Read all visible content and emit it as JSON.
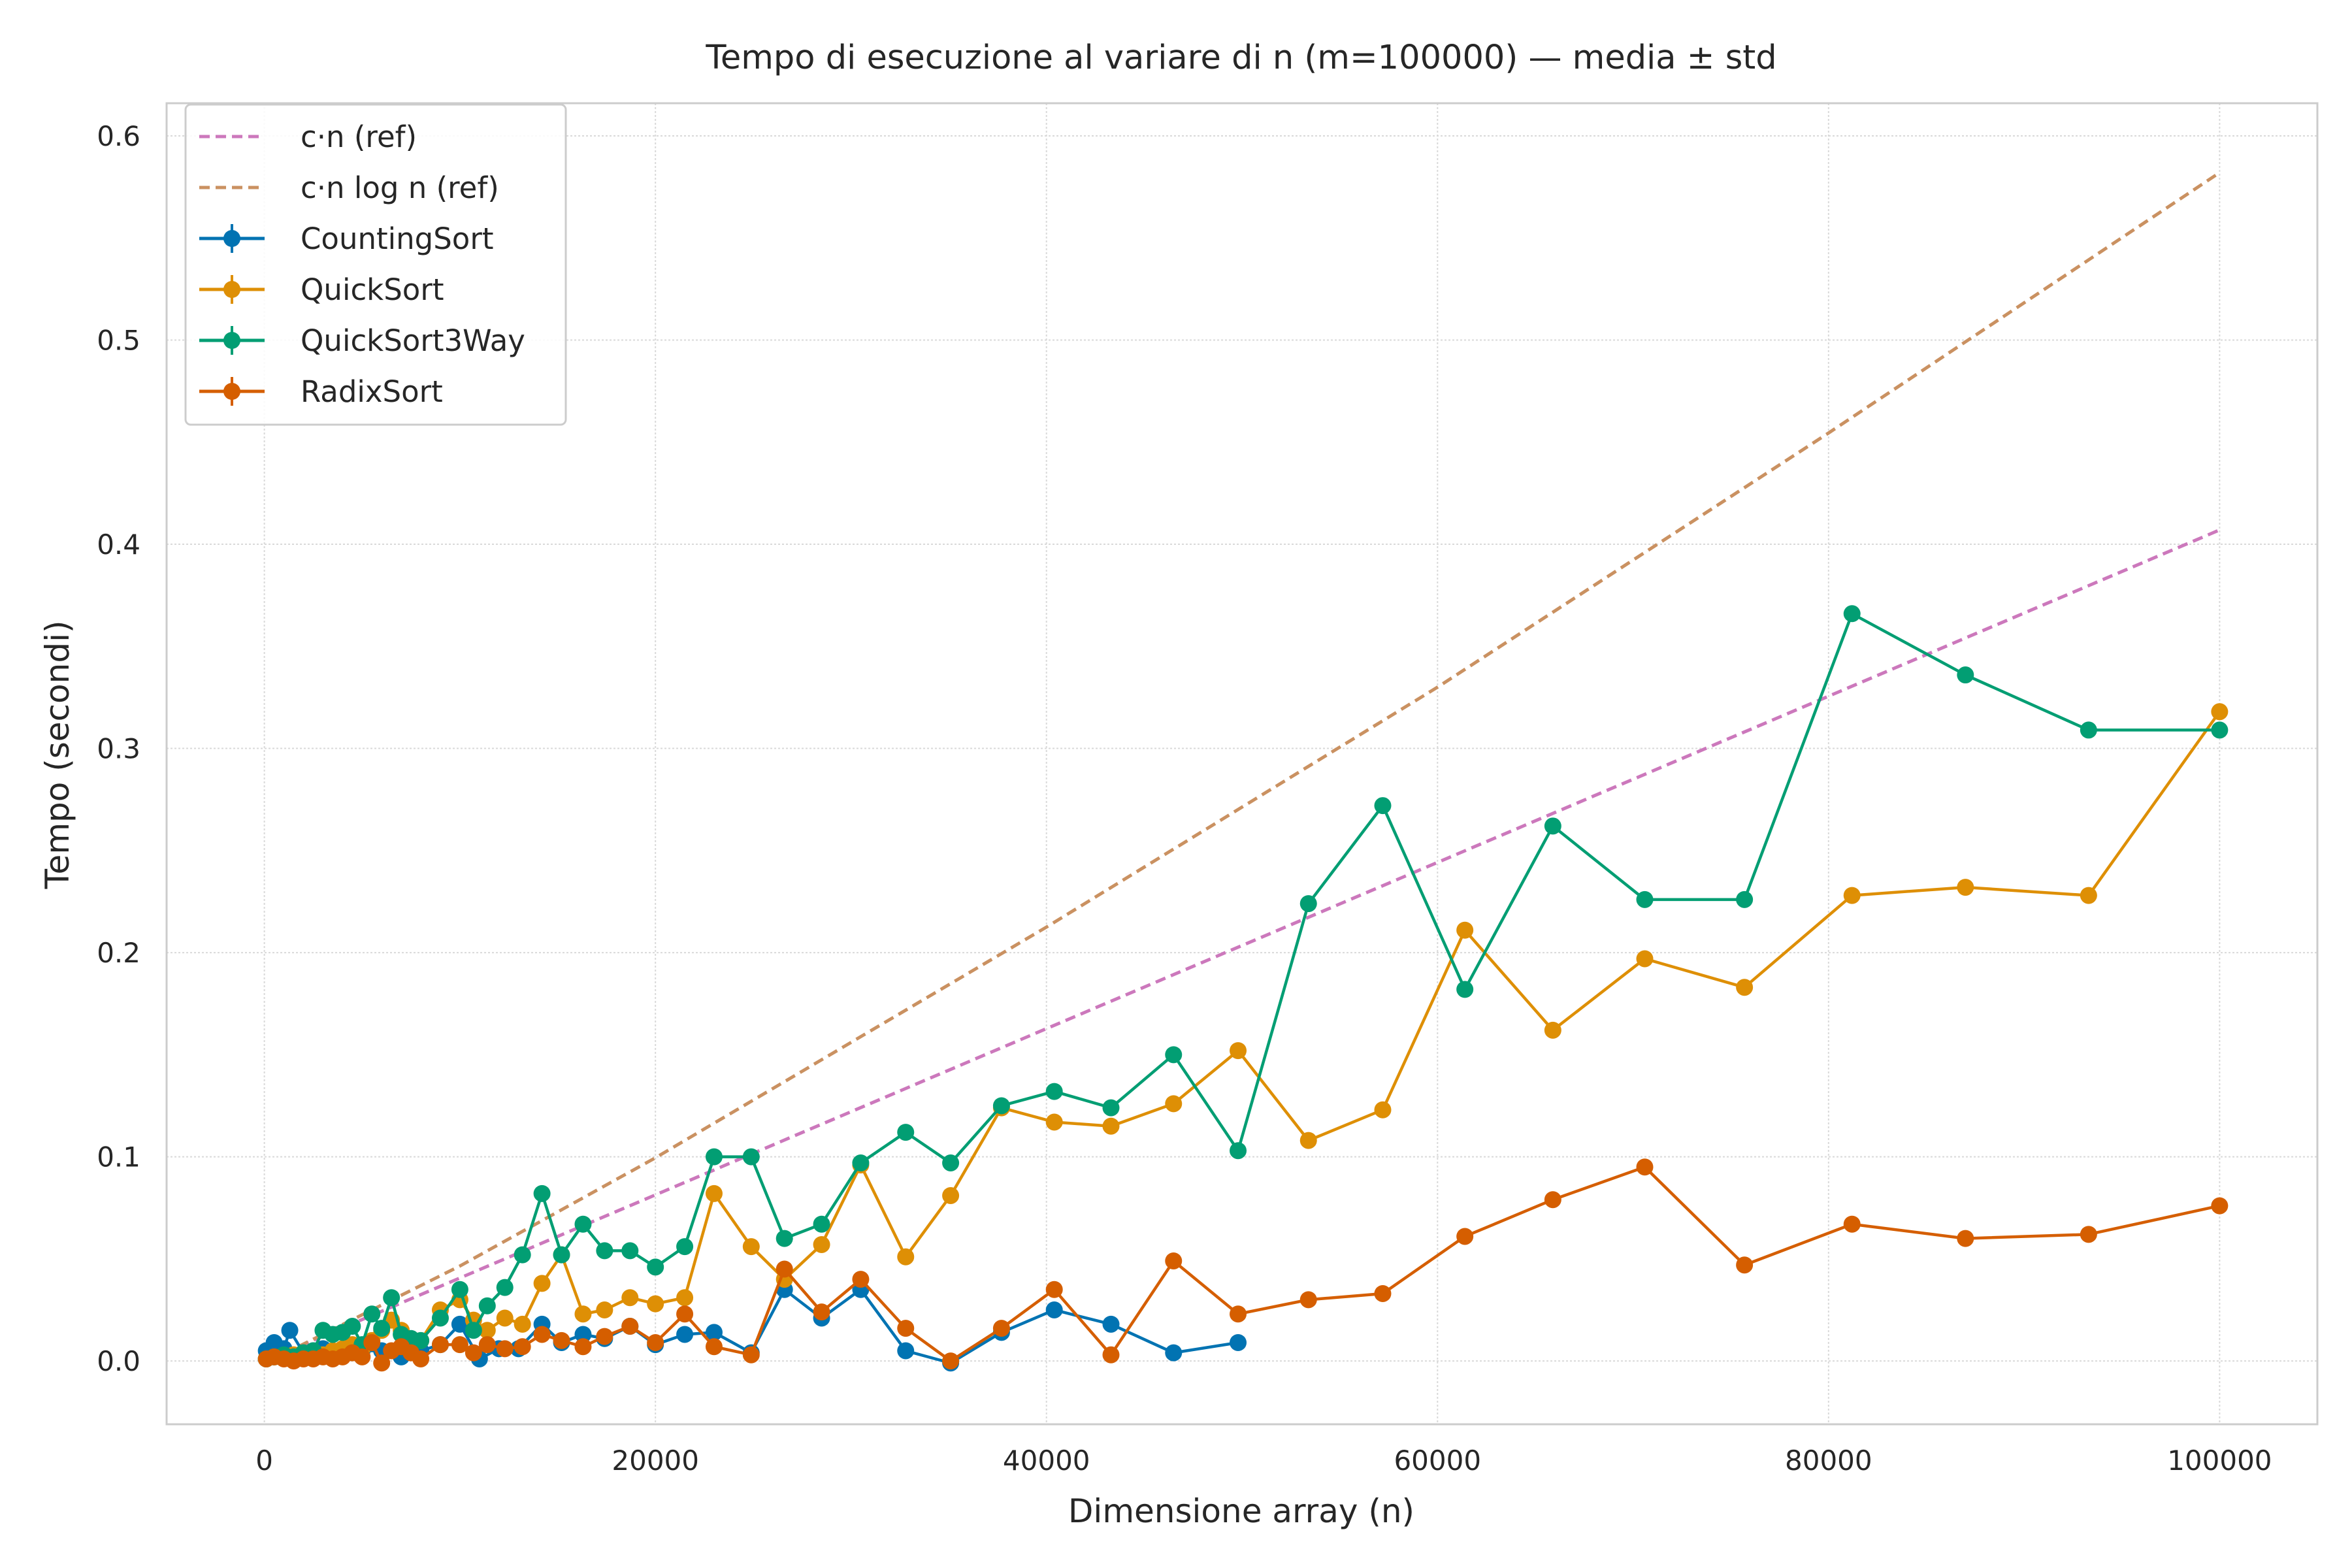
{
  "chart_data": {
    "type": "line",
    "title": "Tempo di esecuzione al variare di n (m=100000) — media ± std",
    "xlabel": "Dimensione array (n)",
    "ylabel": "Tempo (secondi)",
    "xlim": [
      -5000,
      105000
    ],
    "ylim": [
      -0.031,
      0.616
    ],
    "xticks": [
      0,
      20000,
      40000,
      60000,
      80000,
      100000
    ],
    "xtick_labels": [
      "0",
      "20000",
      "40000",
      "60000",
      "80000",
      "100000"
    ],
    "yticks": [
      0.0,
      0.1,
      0.2,
      0.3,
      0.4,
      0.5,
      0.6
    ],
    "ytick_labels": [
      "0.0",
      "0.1",
      "0.2",
      "0.3",
      "0.4",
      "0.5",
      "0.6"
    ],
    "grid": true,
    "legend_position": "top-left",
    "reference_lines": [
      {
        "name": "c·n (ref)",
        "color": "#cc78bc",
        "style": "dashed",
        "x": [
          1000,
          100000
        ],
        "y": [
          0.004,
          0.407
        ]
      },
      {
        "name": "c·n log n (ref)",
        "color": "#ca9161",
        "style": "dashed",
        "x": [
          1000,
          10000,
          20000,
          40000,
          60000,
          80000,
          100000
        ],
        "y": [
          0.0035,
          0.0465,
          0.0995,
          0.2125,
          0.33,
          0.4545,
          0.582
        ]
      }
    ],
    "series": [
      {
        "name": "CountingSort",
        "color": "#0173b2",
        "x": [
          100,
          500,
          1000,
          1300,
          2000,
          2500,
          3000,
          3500,
          4000,
          4500,
          5000,
          6000,
          7000,
          8000,
          9000,
          10000,
          11000,
          12000,
          13000,
          14200,
          15200,
          16300,
          17400,
          18700,
          20000,
          21500,
          23000,
          24900,
          26600,
          28500,
          30500,
          32800,
          35100,
          37700,
          40400,
          43300,
          46500,
          49800
        ],
        "y": [
          0.005,
          0.009,
          0.006,
          0.015,
          0.004,
          0.005,
          0.006,
          0.003,
          0.005,
          0.004,
          0.005,
          0.005,
          0.002,
          0.005,
          0.008,
          0.018,
          0.001,
          0.006,
          0.006,
          0.018,
          0.009,
          0.013,
          0.011,
          0.017,
          0.008,
          0.013,
          0.014,
          0.004,
          0.035,
          0.021,
          0.035,
          0.005,
          -0.001,
          0.014,
          0.025,
          0.018,
          0.004,
          0.009
        ]
      },
      {
        "name": "QuickSort",
        "color": "#de8f05",
        "x": [
          100,
          500,
          1000,
          1500,
          2000,
          2500,
          3000,
          3500,
          4000,
          4500,
          5000,
          5500,
          6000,
          6500,
          7000,
          7500,
          8000,
          9000,
          10000,
          10700,
          11400,
          12300,
          13200,
          14200,
          15200,
          16300,
          17400,
          18700,
          20000,
          21500,
          23000,
          24900,
          26600,
          28500,
          30500,
          32800,
          35100,
          37700,
          40400,
          43300,
          46500,
          49800,
          53400,
          57200,
          61400,
          65900,
          70600,
          75700,
          81200,
          87000,
          93300,
          100000
        ],
        "y": [
          0.001,
          0.002,
          0.002,
          0.003,
          0.002,
          0.003,
          0.003,
          0.005,
          0.006,
          0.008,
          0.006,
          0.01,
          0.015,
          0.02,
          0.015,
          0.008,
          0.01,
          0.025,
          0.03,
          0.02,
          0.015,
          0.021,
          0.018,
          0.038,
          0.052,
          0.023,
          0.025,
          0.031,
          0.028,
          0.031,
          0.082,
          0.056,
          0.04,
          0.057,
          0.096,
          0.051,
          0.081,
          0.124,
          0.117,
          0.115,
          0.126,
          0.152,
          0.108,
          0.123,
          0.211,
          0.162,
          0.197,
          0.183,
          0.228,
          0.232,
          0.228,
          0.318
        ]
      },
      {
        "name": "QuickSort3Way",
        "color": "#029e73",
        "x": [
          100,
          500,
          1000,
          1500,
          2000,
          2500,
          3000,
          3500,
          4000,
          4500,
          5000,
          5500,
          6000,
          6500,
          7000,
          7500,
          8000,
          9000,
          10000,
          10700,
          11400,
          12300,
          13200,
          14200,
          15200,
          16300,
          17400,
          18700,
          20000,
          21500,
          23000,
          24900,
          26600,
          28500,
          30500,
          32800,
          35100,
          37700,
          40400,
          43300,
          46500,
          49800,
          53400,
          57200,
          61400,
          65900,
          70600,
          75700,
          81200,
          87000,
          93300,
          100000
        ],
        "y": [
          0.001,
          0.002,
          0.003,
          0.002,
          0.004,
          0.005,
          0.015,
          0.013,
          0.014,
          0.017,
          0.008,
          0.023,
          0.016,
          0.031,
          0.013,
          0.011,
          0.01,
          0.021,
          0.035,
          0.015,
          0.027,
          0.036,
          0.052,
          0.082,
          0.052,
          0.067,
          0.054,
          0.054,
          0.046,
          0.056,
          0.1,
          0.1,
          0.06,
          0.067,
          0.097,
          0.112,
          0.097,
          0.125,
          0.132,
          0.124,
          0.15,
          0.103,
          0.224,
          0.272,
          0.182,
          0.262,
          0.226,
          0.226,
          0.366,
          0.336,
          0.309,
          0.309
        ]
      },
      {
        "name": "RadixSort",
        "color": "#d55e00",
        "x": [
          100,
          500,
          1000,
          1500,
          2000,
          2500,
          3000,
          3500,
          4000,
          4500,
          5000,
          5500,
          6000,
          6500,
          7000,
          7500,
          8000,
          9000,
          10000,
          10700,
          11400,
          12300,
          13200,
          14200,
          15200,
          16300,
          17400,
          18700,
          20000,
          21500,
          23000,
          24900,
          26600,
          28500,
          30500,
          32800,
          35100,
          37700,
          40400,
          43300,
          46500,
          49800,
          53400,
          57200,
          61400,
          65900,
          70600,
          75700,
          81200,
          87000,
          93300,
          100000
        ],
        "y": [
          0.001,
          0.002,
          0.001,
          0.0,
          0.001,
          0.001,
          0.002,
          0.001,
          0.002,
          0.004,
          0.002,
          0.009,
          -0.001,
          0.005,
          0.007,
          0.004,
          0.001,
          0.008,
          0.008,
          0.004,
          0.008,
          0.006,
          0.007,
          0.013,
          0.01,
          0.007,
          0.012,
          0.017,
          0.009,
          0.023,
          0.007,
          0.003,
          0.045,
          0.024,
          0.04,
          0.016,
          0.0,
          0.016,
          0.035,
          0.003,
          0.049,
          0.023,
          0.03,
          0.033,
          0.061,
          0.079,
          0.095,
          0.047,
          0.067,
          0.06,
          0.062,
          0.076
        ]
      }
    ]
  }
}
